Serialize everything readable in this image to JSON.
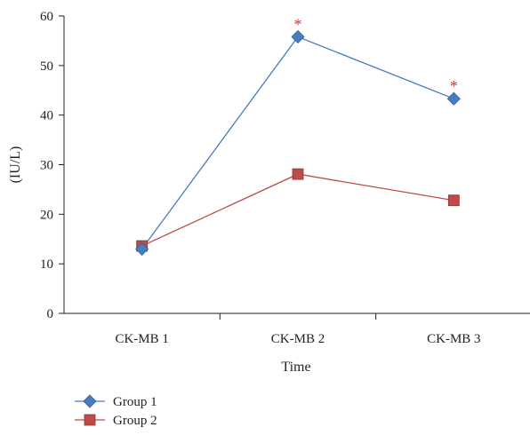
{
  "chart_data": {
    "type": "line",
    "categories": [
      "CK-MB 1",
      "CK-MB 2",
      "CK-MB 3"
    ],
    "series": [
      {
        "name": "Group 1",
        "values": [
          13,
          55.8,
          43.3
        ],
        "color": "#4a7ebb",
        "marker": "diamond"
      },
      {
        "name": "Group 2",
        "values": [
          13.6,
          28.1,
          22.8
        ],
        "color": "#be4b48",
        "marker": "square"
      }
    ],
    "significance_markers": [
      {
        "category_index": 1,
        "label": "*"
      },
      {
        "category_index": 2,
        "label": "*"
      }
    ],
    "significance_color": "#e03030",
    "xlabel": "Time",
    "ylabel": "(IU/L)",
    "ylim": [
      0,
      60
    ],
    "yticks": [
      0,
      10,
      20,
      30,
      40,
      50,
      60
    ],
    "grid": false,
    "legend_position": "bottom-left"
  }
}
